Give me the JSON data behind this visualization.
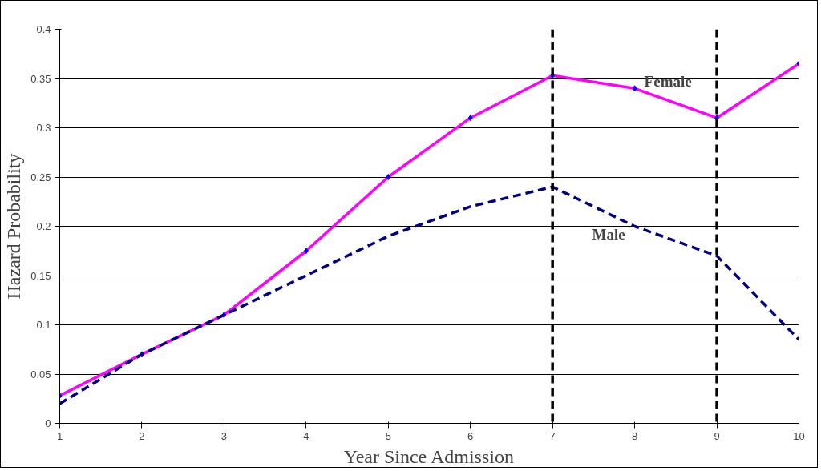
{
  "chart_data": {
    "type": "line",
    "xlabel": "Year Since Admission",
    "ylabel": "Hazard Probability",
    "x": [
      1,
      2,
      3,
      4,
      5,
      6,
      7,
      8,
      9,
      10
    ],
    "series": [
      {
        "name": "Female",
        "color": "#ff00ff",
        "line_style": "solid",
        "marker": "diamond",
        "values": [
          0.028,
          0.07,
          0.11,
          0.175,
          0.25,
          0.31,
          0.353,
          0.34,
          0.31,
          0.365
        ]
      },
      {
        "name": "Male",
        "color": "#000080",
        "line_style": "dashed",
        "marker": "none",
        "values": [
          0.02,
          0.07,
          0.11,
          0.15,
          0.19,
          0.22,
          0.24,
          0.2,
          0.17,
          0.085
        ]
      }
    ],
    "xlim": [
      1,
      10
    ],
    "xticks": [
      1,
      2,
      3,
      4,
      5,
      6,
      7,
      8,
      9,
      10
    ],
    "ylim": [
      0,
      0.4
    ],
    "yticks": [
      0,
      0.05,
      0.1,
      0.15,
      0.2,
      0.25,
      0.3,
      0.35,
      0.4
    ],
    "grid": "y",
    "ref_lines": [
      {
        "axis": "x",
        "value": 7,
        "color": "#000000",
        "line_style": "dashed"
      },
      {
        "axis": "x",
        "value": 9,
        "color": "#000000",
        "line_style": "dashed"
      }
    ]
  }
}
